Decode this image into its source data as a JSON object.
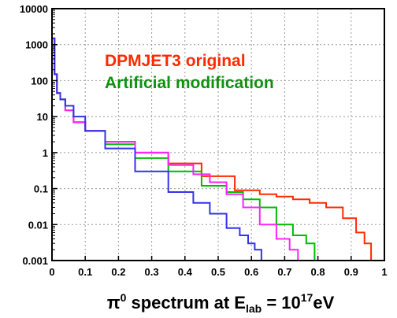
{
  "chart_data": {
    "type": "line",
    "title": "",
    "xlabel": {
      "text": "π",
      "sup1": "0",
      "mid": " spectrum at E",
      "sub": "lab",
      "eq": " = 10",
      "sup2": "17",
      "unit": "eV"
    },
    "ylabel": "",
    "xlim": [
      0,
      1
    ],
    "ylim": [
      0.001,
      10000
    ],
    "yscale": "log",
    "grid": true,
    "x_ticks": [
      "0",
      "0.1",
      "0.2",
      "0.3",
      "0.4",
      "0.5",
      "0.6",
      "0.7",
      "0.8",
      "0.9",
      "1"
    ],
    "y_ticks": [
      "0.001",
      "0.01",
      "0.1",
      "1",
      "10",
      "100",
      "1000",
      "10000"
    ],
    "legend_entries": [
      "DPMJET3 original",
      "Artificial modification"
    ],
    "series": [
      {
        "name": "DPMJET3 original",
        "color": "#ff2a00",
        "x": [
          0.005,
          0.01,
          0.02,
          0.03,
          0.05,
          0.08,
          0.12,
          0.2,
          0.3,
          0.4,
          0.5,
          0.6,
          0.65,
          0.7,
          0.75,
          0.8,
          0.85,
          0.9,
          0.93,
          0.95,
          0.97
        ],
        "values": [
          1500,
          150,
          45,
          30,
          15,
          7,
          4,
          2,
          1,
          0.5,
          0.22,
          0.09,
          0.07,
          0.06,
          0.05,
          0.04,
          0.03,
          0.015,
          0.006,
          0.003,
          0.001
        ]
      },
      {
        "color": "#00bb00",
        "x": [
          0.005,
          0.01,
          0.02,
          0.03,
          0.05,
          0.08,
          0.12,
          0.2,
          0.3,
          0.4,
          0.5,
          0.55,
          0.6,
          0.65,
          0.7,
          0.75,
          0.78,
          0.8
        ],
        "values": [
          1500,
          150,
          45,
          30,
          15,
          7,
          4,
          1.7,
          0.7,
          0.3,
          0.12,
          0.08,
          0.05,
          0.03,
          0.01,
          0.005,
          0.003,
          0.001
        ]
      },
      {
        "color": "#ff22ff",
        "x": [
          0.005,
          0.01,
          0.02,
          0.03,
          0.05,
          0.08,
          0.12,
          0.2,
          0.3,
          0.4,
          0.45,
          0.5,
          0.55,
          0.6,
          0.65,
          0.7,
          0.73,
          0.75
        ],
        "values": [
          1500,
          150,
          45,
          30,
          15,
          7,
          4,
          2,
          1,
          0.45,
          0.25,
          0.15,
          0.07,
          0.03,
          0.01,
          0.004,
          0.002,
          0.001
        ]
      },
      {
        "color": "#3333ee",
        "x": [
          0.005,
          0.01,
          0.02,
          0.03,
          0.05,
          0.08,
          0.12,
          0.2,
          0.3,
          0.4,
          0.45,
          0.5,
          0.55,
          0.58,
          0.6,
          0.62,
          0.64
        ],
        "values": [
          1500,
          150,
          45,
          30,
          20,
          10,
          4,
          1.3,
          0.3,
          0.08,
          0.04,
          0.02,
          0.008,
          0.005,
          0.003,
          0.002,
          0.001
        ]
      }
    ]
  }
}
